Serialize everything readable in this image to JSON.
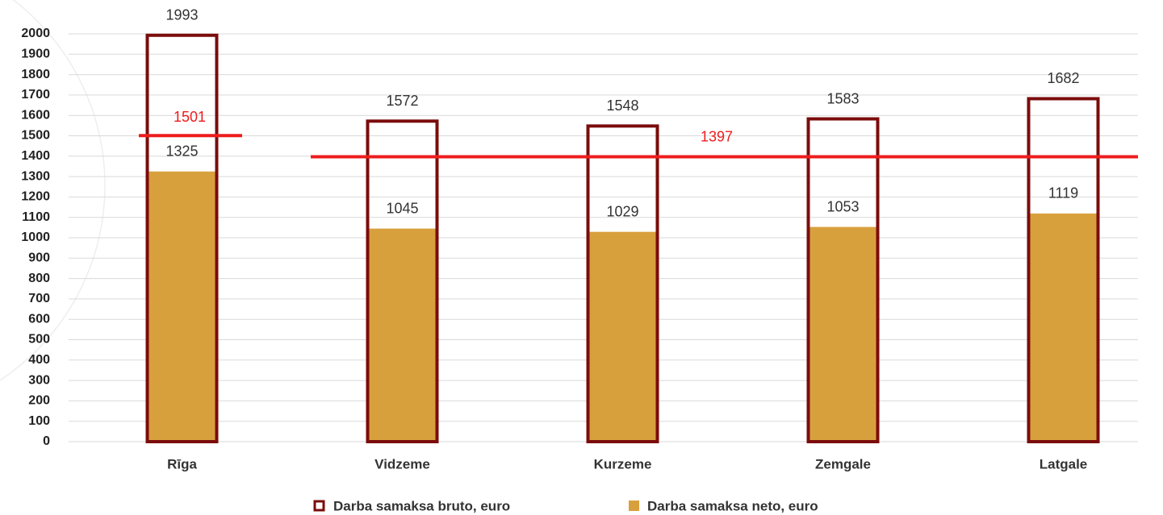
{
  "chart_data": {
    "type": "bar",
    "categories": [
      "Rīga",
      "Vidzeme",
      "Kurzeme",
      "Zemgale",
      "Latgale"
    ],
    "series": [
      {
        "name": "Darba samaksa bruto, euro",
        "color": "#7b0c0c",
        "values": [
          1993,
          1572,
          1548,
          1583,
          1682
        ]
      },
      {
        "name": "Darba samaksa neto, euro",
        "color": "#d8a03d",
        "values": [
          1325,
          1045,
          1029,
          1053,
          1119
        ]
      }
    ],
    "reference_lines": [
      {
        "value": 1501,
        "color": "#ee1c1c"
      },
      {
        "value": 1397,
        "color": "#ee1c1c"
      }
    ],
    "ylim": [
      0,
      2000
    ],
    "yticks": [
      0,
      100,
      200,
      300,
      400,
      500,
      600,
      700,
      800,
      900,
      1000,
      1100,
      1200,
      1300,
      1400,
      1500,
      1600,
      1700,
      1800,
      1900,
      2000
    ],
    "grid": true,
    "legend": "bottom"
  }
}
